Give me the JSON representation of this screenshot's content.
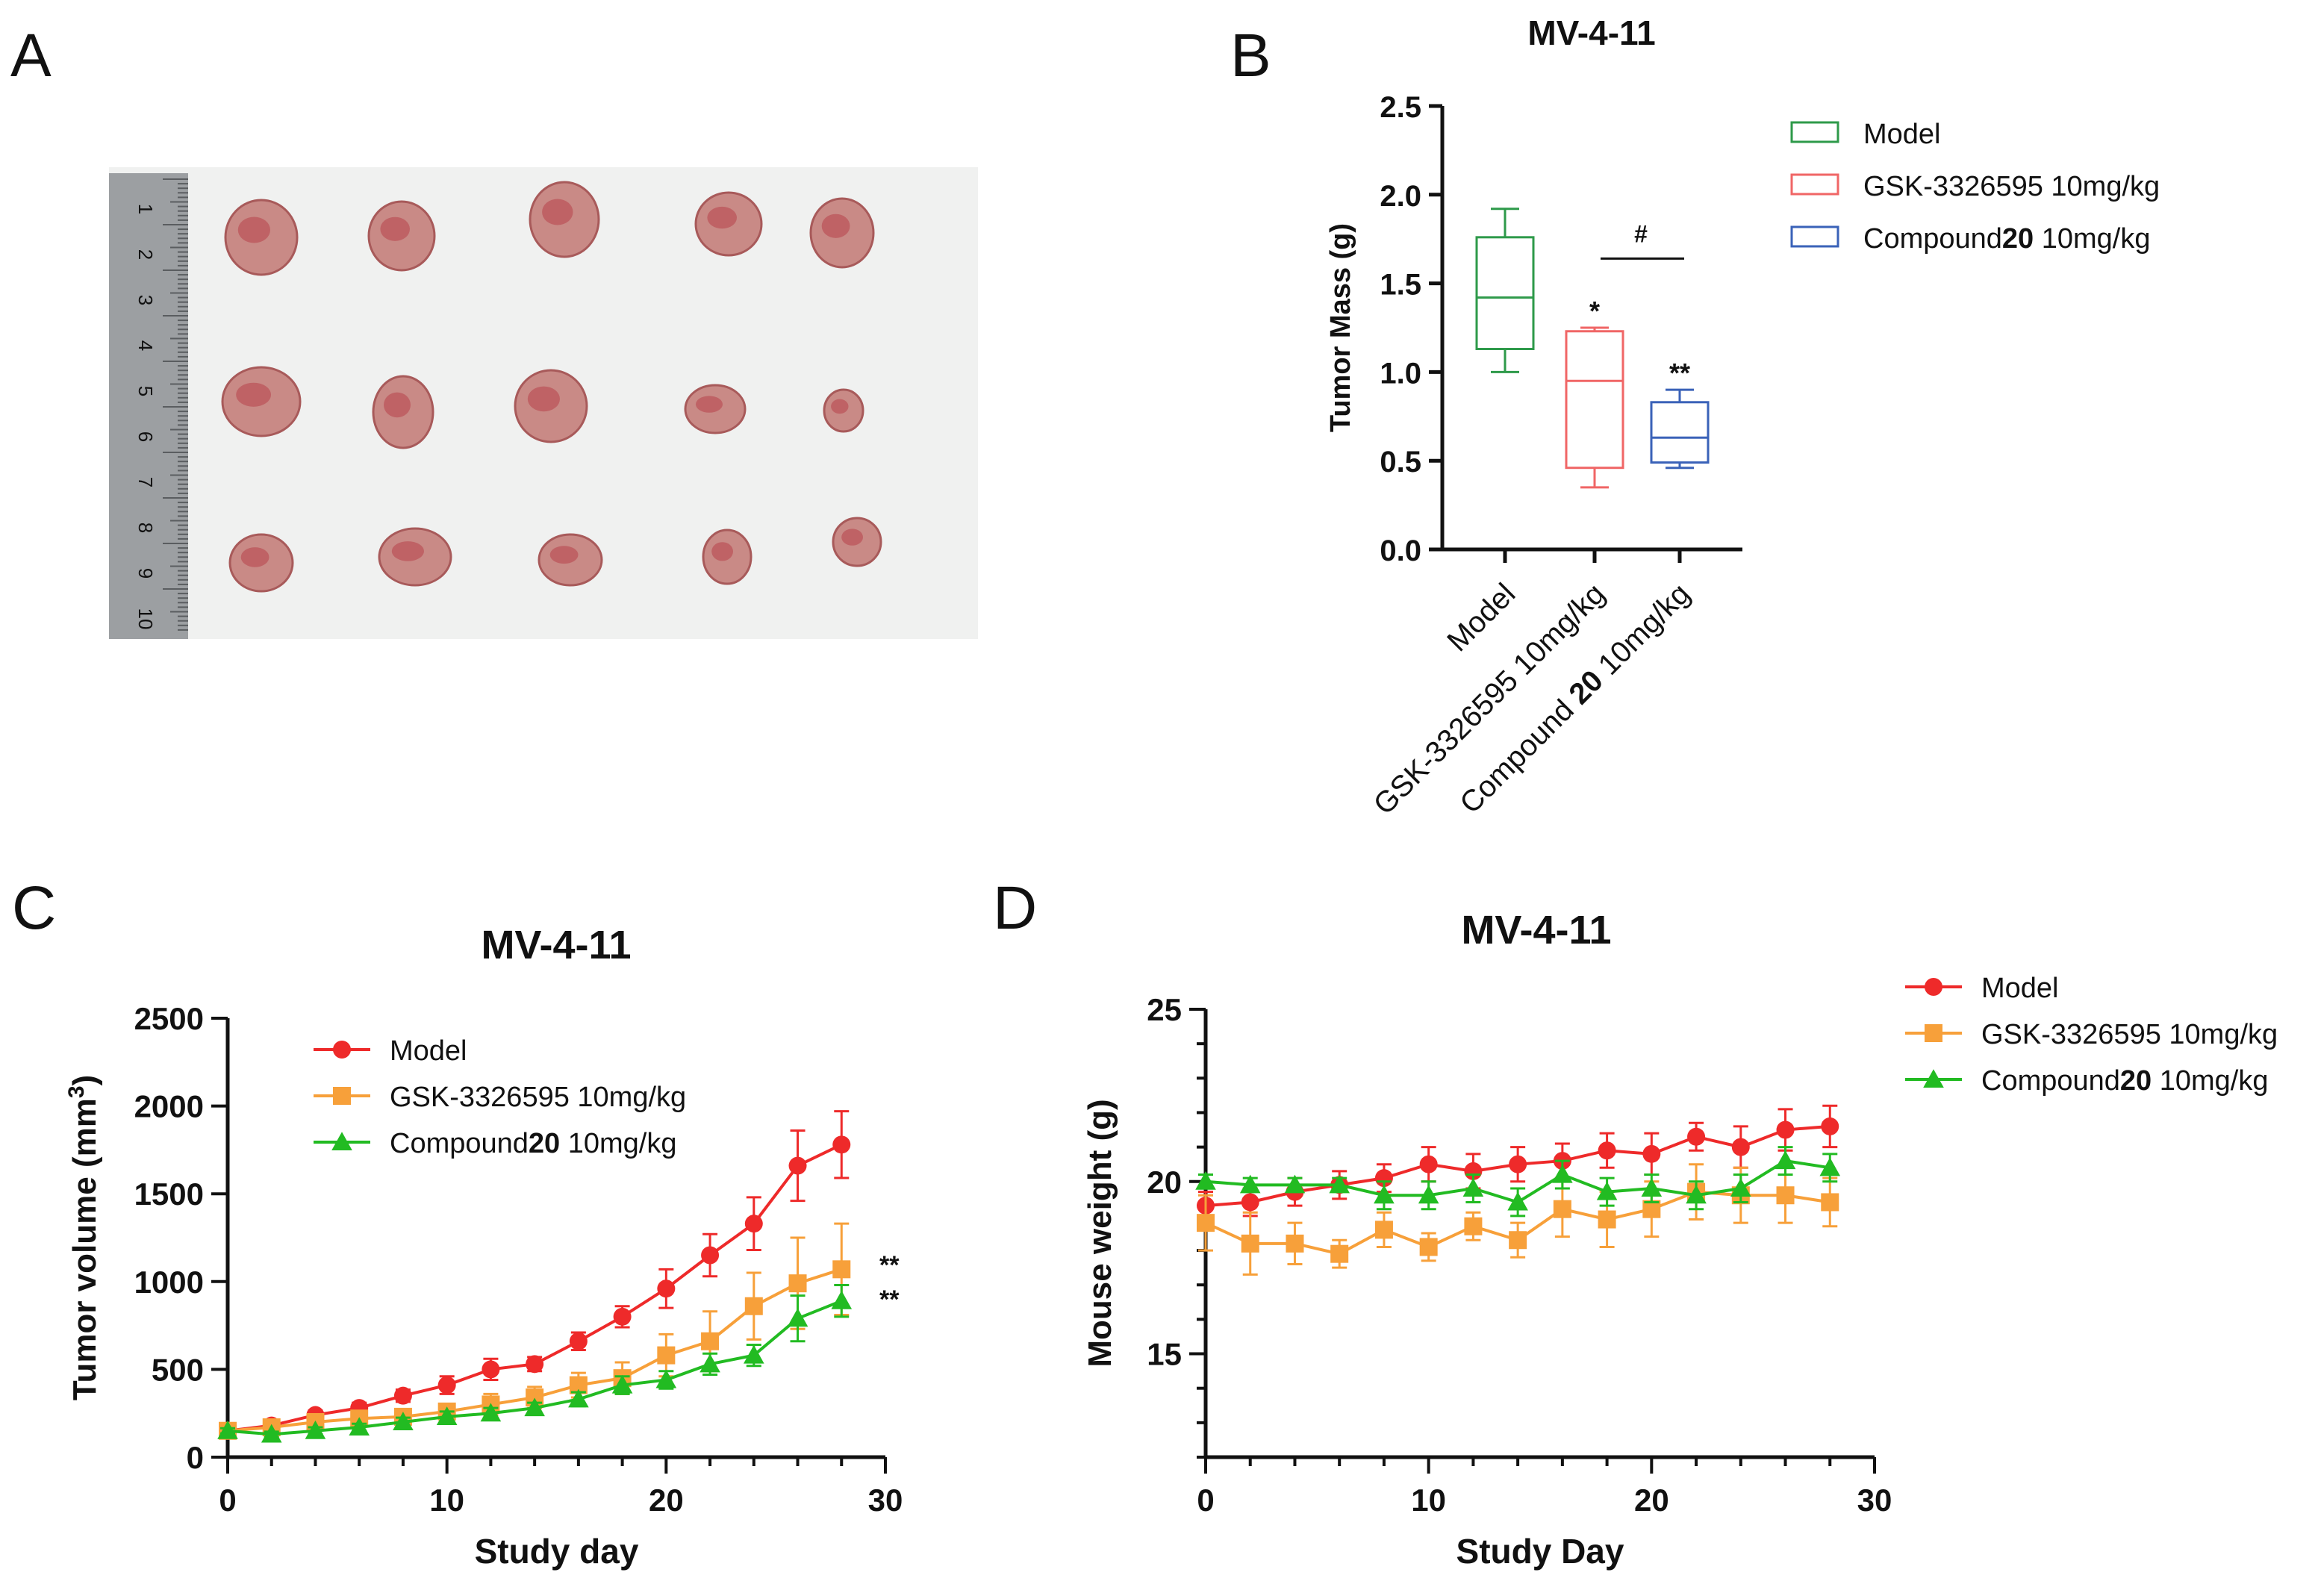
{
  "panels": {
    "a": {
      "letter": "A"
    },
    "b": {
      "letter": "B"
    },
    "c": {
      "letter": "C"
    },
    "d": {
      "letter": "D"
    }
  },
  "photo": {
    "ruler_numbers": [
      "1",
      "2",
      "3",
      "4",
      "5",
      "6",
      "7",
      "8",
      "9",
      "10"
    ],
    "tumor_color": "#c98a86"
  },
  "colors": {
    "model": "#ee2a2a",
    "gsk": "#f7a03a",
    "compound": "#22bb22",
    "box_model": "#2e9a4a",
    "box_gsk": "#f06666",
    "box_compound": "#3a62b8"
  },
  "chart_data": [
    {
      "id": "B",
      "type": "box",
      "title": "MV-4-11",
      "xlabel": "",
      "ylabel": "Tumor Mass (g)",
      "ylim": [
        0,
        2.5
      ],
      "yticks": [
        "0.0",
        "0.5",
        "1.0",
        "1.5",
        "2.0",
        "2.5"
      ],
      "categories": [
        {
          "pre": "Model",
          "bold": "",
          "post": ""
        },
        {
          "pre": "GSK-3326595 10mg/kg",
          "bold": "",
          "post": ""
        },
        {
          "pre": "Compound ",
          "bold": "20",
          "post": " 10mg/kg"
        }
      ],
      "boxes": [
        {
          "name": "Model",
          "min": 1.0,
          "q1": 1.13,
          "median": 1.42,
          "q3": 1.76,
          "max": 1.92,
          "annotation": ""
        },
        {
          "name": "GSK-3326595 10mg/kg",
          "min": 0.35,
          "q1": 0.46,
          "median": 0.95,
          "q3": 1.23,
          "max": 1.25,
          "annotation": "*"
        },
        {
          "name": "Compound20 10mg/kg",
          "min": 0.46,
          "q1": 0.49,
          "median": 0.63,
          "q3": 0.83,
          "max": 0.9,
          "annotation": "**"
        }
      ],
      "bracket_label": "#",
      "bracket_y": 1.64,
      "legend": [
        {
          "pre": "Model",
          "bold": "",
          "post": ""
        },
        {
          "pre": "GSK-3326595 10mg/kg",
          "bold": "",
          "post": ""
        },
        {
          "pre": "Compound",
          "bold": "20",
          "post": " 10mg/kg"
        }
      ]
    },
    {
      "id": "C",
      "type": "line",
      "title": "MV-4-11",
      "xlabel": "Study day",
      "ylabel": "Tumor volume (mm",
      "ylabel_sup": "3",
      "ylabel_end": ")",
      "xlim": [
        0,
        30
      ],
      "ylim": [
        0,
        2500
      ],
      "xticks": [
        0,
        10,
        20,
        30
      ],
      "yticks": [
        0,
        500,
        1000,
        1500,
        2000,
        2500
      ],
      "x": [
        0,
        2,
        4,
        6,
        8,
        10,
        12,
        14,
        16,
        18,
        20,
        22,
        24,
        26,
        28
      ],
      "series": [
        {
          "name": "Model",
          "bold": "",
          "post": "",
          "marker": "circle",
          "values": [
            150,
            180,
            240,
            280,
            350,
            410,
            500,
            530,
            660,
            800,
            960,
            1150,
            1330,
            1660,
            1780
          ],
          "errors": [
            20,
            25,
            25,
            30,
            35,
            50,
            60,
            40,
            50,
            60,
            110,
            120,
            150,
            200,
            190
          ]
        },
        {
          "name": "GSK-3326595 10mg/kg",
          "bold": "",
          "post": "",
          "marker": "square",
          "values": [
            150,
            170,
            200,
            220,
            230,
            260,
            300,
            340,
            410,
            450,
            580,
            660,
            860,
            990,
            1070
          ],
          "errors": [
            20,
            20,
            30,
            30,
            40,
            40,
            60,
            60,
            70,
            90,
            120,
            170,
            190,
            260,
            260
          ]
        },
        {
          "name": "Compound",
          "bold": "20",
          "post": " 10mg/kg",
          "marker": "triangle",
          "values": [
            150,
            130,
            150,
            170,
            200,
            230,
            250,
            280,
            330,
            410,
            440,
            530,
            580,
            790,
            890
          ],
          "errors": [
            15,
            15,
            20,
            20,
            25,
            30,
            30,
            30,
            40,
            50,
            50,
            60,
            60,
            130,
            90
          ]
        }
      ],
      "annotations": [
        "**",
        "**"
      ]
    },
    {
      "id": "D",
      "type": "line",
      "title": "MV-4-11",
      "xlabel": "Study Day",
      "ylabel": "Mouse weight (g)",
      "xlim": [
        0,
        30
      ],
      "ylim": [
        12,
        25
      ],
      "xticks": [
        0,
        10,
        20,
        30
      ],
      "yticks": [
        15,
        20,
        25
      ],
      "x": [
        0,
        2,
        4,
        6,
        8,
        10,
        12,
        14,
        16,
        18,
        20,
        22,
        24,
        26,
        28
      ],
      "series": [
        {
          "name": "Model",
          "bold": "",
          "post": "",
          "marker": "circle",
          "values": [
            19.3,
            19.4,
            19.7,
            19.9,
            20.1,
            20.5,
            20.3,
            20.5,
            20.6,
            20.9,
            20.8,
            21.3,
            21.0,
            21.5,
            21.6
          ],
          "errors": [
            0.4,
            0.4,
            0.4,
            0.4,
            0.4,
            0.5,
            0.5,
            0.5,
            0.5,
            0.5,
            0.6,
            0.4,
            0.6,
            0.6,
            0.6
          ]
        },
        {
          "name": "GSK-3326595 10mg/kg",
          "bold": "",
          "post": "",
          "marker": "square",
          "values": [
            18.8,
            18.2,
            18.2,
            17.9,
            18.6,
            18.1,
            18.7,
            18.3,
            19.2,
            18.9,
            19.2,
            19.7,
            19.6,
            19.6,
            19.4
          ],
          "errors": [
            0.8,
            0.9,
            0.6,
            0.4,
            0.5,
            0.4,
            0.4,
            0.5,
            0.8,
            0.8,
            0.8,
            0.8,
            0.8,
            0.8,
            0.7
          ]
        },
        {
          "name": "Compound",
          "bold": "20",
          "post": " 10mg/kg",
          "marker": "triangle",
          "values": [
            20.0,
            19.9,
            19.9,
            19.9,
            19.6,
            19.6,
            19.8,
            19.4,
            20.2,
            19.7,
            19.8,
            19.6,
            19.8,
            20.6,
            20.4
          ],
          "errors": [
            0.2,
            0.2,
            0.2,
            0.2,
            0.4,
            0.4,
            0.4,
            0.4,
            0.4,
            0.4,
            0.4,
            0.4,
            0.4,
            0.4,
            0.4
          ]
        }
      ]
    }
  ]
}
